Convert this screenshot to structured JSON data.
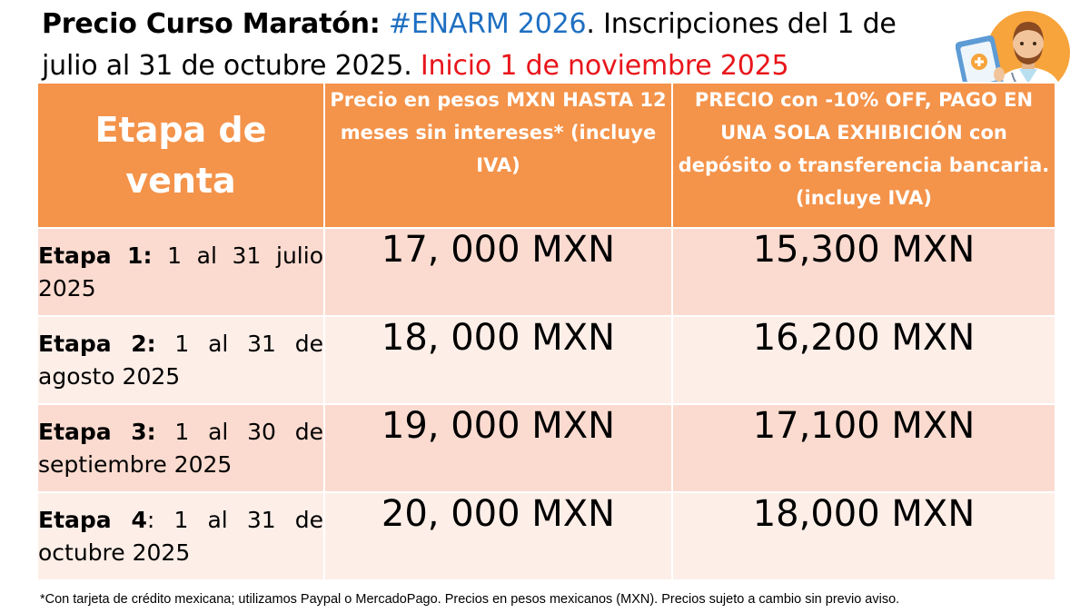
{
  "heading": {
    "title_bold": "Precio Curso Maratón:",
    "title_blue": "#ENARM 2026",
    "title_rest": ". Inscripciones del 1 de julio al 31 de octubre 2025.",
    "title_red": "Inicio 1 de noviembre 2025"
  },
  "colors": {
    "header_orange": "#f4934a",
    "row_dark": "#fbdbd0",
    "row_light": "#fdeee8",
    "blue": "#1f6fc2",
    "red": "#e8151b"
  },
  "table": {
    "headers": [
      "Etapa de venta",
      "Precio en pesos MXN HASTA 12 meses sin intereses* (incluye IVA)",
      "PRECIO con -10% OFF, PAGO EN UNA SOLA EXHIBICIÓN con depósito o transferencia bancaria. (incluye IVA)"
    ],
    "rows": [
      {
        "stage": "Etapa 1:",
        "dates": "1 al 31 julio 2025",
        "price": "17, 000 MXN",
        "discount": "15,300 MXN"
      },
      {
        "stage": "Etapa 2:",
        "dates": "1 al 31 de agosto 2025",
        "price": "18, 000 MXN",
        "discount": "16,200 MXN"
      },
      {
        "stage": "Etapa 3:",
        "dates": "1 al 30 de septiembre 2025",
        "price": "19, 000 MXN",
        "discount": "17,100 MXN"
      },
      {
        "stage": "Etapa 4",
        "stage_sep": ":",
        "dates": "1 al 31 de octubre 2025",
        "price": "20, 000 MXN",
        "discount": "18,000 MXN"
      }
    ]
  },
  "footnote": "*Con tarjeta de crédito mexicana; utilizamos Paypal o MercadoPago. Precios en pesos mexicanos (MXN). Precios sujeto a cambio sin previo aviso.",
  "illustration": {
    "icon": "doctor-with-tablet-icon"
  }
}
